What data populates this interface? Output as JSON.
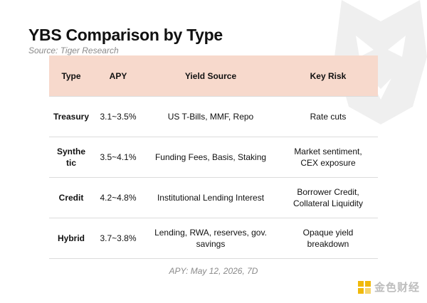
{
  "title": "YBS Comparison by Type",
  "source": "Source: Tiger Research",
  "table": {
    "headers": [
      "Type",
      "APY",
      "Yield Source",
      "Key Risk"
    ],
    "rows": [
      {
        "type": "Treasury",
        "apy": "3.1~3.5%",
        "yield_source": "US T-Bills, MMF, Repo",
        "key_risk": "Rate cuts"
      },
      {
        "type": "Synthe\ntic",
        "apy": "3.5~4.1%",
        "yield_source": "Funding Fees, Basis, Staking",
        "key_risk": "Market sentiment,\nCEX exposure"
      },
      {
        "type": "Credit",
        "apy": "4.2~4.8%",
        "yield_source": "Institutional Lending Interest",
        "key_risk": "Borrower Credit,\nCollateral Liquidity"
      },
      {
        "type": "Hybrid",
        "apy": "3.7~3.8%",
        "yield_source": "Lending, RWA, reserves, gov.\nsavings",
        "key_risk": "Opaque yield\nbreakdown"
      }
    ]
  },
  "footnote": "APY: May 12, 2026, 7D",
  "brand": {
    "name": "金色财经",
    "logo_icon": "jinse-logo-icon",
    "watermark_icon": "tiger-head-icon",
    "accent": "#f0b90b"
  },
  "colors": {
    "header_bg": "#f7d9cc"
  }
}
